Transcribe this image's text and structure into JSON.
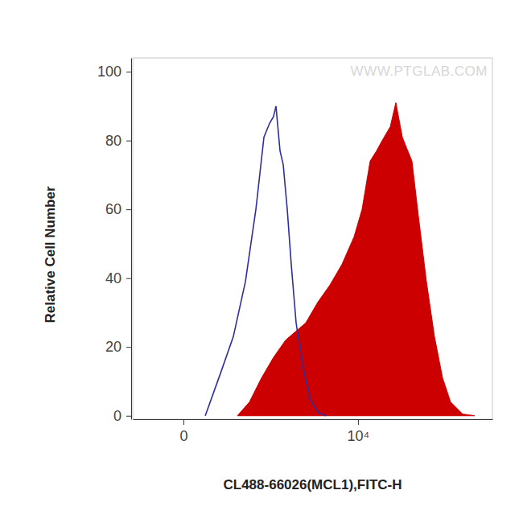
{
  "chart_data": {
    "type": "area",
    "watermark": "WWW.PTGLAB.COM",
    "x_label": "CL488-66026(MCL1),FITC-H",
    "y_label": "Relative Cell Number",
    "log": "x",
    "xlim": [
      -282,
      353200
    ],
    "xticks": [
      0,
      {
        "value": 10000,
        "label": "10⁴"
      }
    ],
    "ylim": [
      -1,
      104
    ],
    "yticks": [
      0,
      20,
      40,
      60,
      80,
      100
    ],
    "grid": false,
    "series": [
      {
        "type": "area",
        "color": "#cc0000",
        "x": [
          316,
          473,
          688,
          984,
          1391,
          1951,
          2438,
          3392,
          4710,
          6510,
          9000,
          11150,
          13820,
          16400,
          19050,
          23600,
          27400,
          32500,
          36200,
          42000,
          49800,
          61600,
          76200,
          94400,
          116800,
          160600,
          221100
        ],
        "values": [
          0,
          4,
          11,
          17,
          22,
          25,
          27,
          33,
          38,
          44,
          52,
          60,
          74,
          77,
          80,
          84,
          91,
          81,
          78,
          74,
          58,
          39,
          23,
          11,
          4,
          0.5,
          0
        ]
      },
      {
        "type": "line",
        "color": "#2e2e9e",
        "x": [
          78,
          172,
          274,
          415,
          579,
          740,
          875,
          984,
          1055,
          1185,
          1299,
          1456,
          1630,
          1867,
          2182,
          2722,
          3392,
          4220
        ],
        "values": [
          0,
          13,
          23,
          39,
          60,
          81,
          85,
          87,
          90,
          77,
          73,
          60,
          44,
          27,
          16,
          5,
          1,
          0
        ]
      }
    ]
  }
}
